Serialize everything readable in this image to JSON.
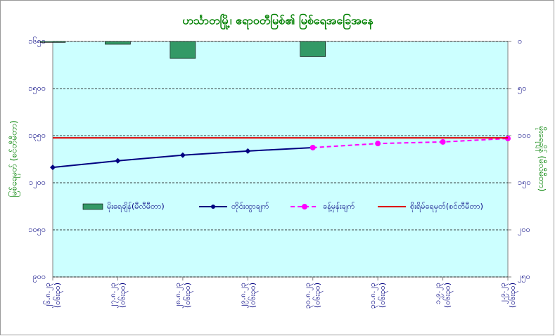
{
  "chart_data": {
    "type": "combo",
    "title": "ဟင်္သာတမြို့၊ ဧရာဝတီမြစ်၏ မြစ်ရေအခြေအနေ",
    "y_label": "မြစ်ရေမှတ် (စင်တီမီတာ)",
    "y2_label": "မိုးရေချိန် (မီလီမီတာ)",
    "categories": [
      [
        "၂၆.၈.၂၃",
        "(၀၆း၃၀)"
      ],
      [
        "၂၇.၈.၂၃",
        "(၀၆း၃၀)"
      ],
      [
        "၂၈.၈.၂၃",
        "(၀၆း၃၀)"
      ],
      [
        "၂၉.၈.၂၃",
        "(၀၆း၃၀)"
      ],
      [
        "၃၀.၈.၂၃",
        "(၀၆း၃၀)"
      ],
      [
        "၃၁.၈.၂၃",
        "(၀၆း၃၀)"
      ],
      [
        "၁.၉.၂၃",
        "(၀၆း၃၀)"
      ],
      [
        "၂.၉.၂၃",
        "(၀၆း၃၀)"
      ]
    ],
    "ylim": [
      900,
      1650
    ],
    "yticks": [
      {
        "value": 900,
        "label": "၉၀၀"
      },
      {
        "value": 1050,
        "label": "၁၀၅၀"
      },
      {
        "value": 1200,
        "label": "၁၂၀၀"
      },
      {
        "value": 1350,
        "label": "၁၃၅၀"
      },
      {
        "value": 1500,
        "label": "၁၅၀၀"
      },
      {
        "value": 1650,
        "label": "၁၆၅၀"
      }
    ],
    "y2lim": [
      0,
      250
    ],
    "y2_reversed": true,
    "y2ticks": [
      {
        "value": 0,
        "label": "၀"
      },
      {
        "value": 50,
        "label": "၅၀"
      },
      {
        "value": 100,
        "label": "၁၀၀"
      },
      {
        "value": 150,
        "label": "၁၅၀"
      },
      {
        "value": 200,
        "label": "၂၀၀"
      },
      {
        "value": 250,
        "label": "၂၅၀"
      }
    ],
    "grid": true,
    "background": "#ccffff",
    "series": [
      {
        "name": "မိုးရေချိန်(မီလီမီတာ)",
        "type": "bar",
        "axis": "y2",
        "color": "#339966",
        "values": [
          1,
          3,
          18,
          0,
          16,
          0,
          0,
          0
        ]
      },
      {
        "name": "တိုင်းထွာချက်",
        "type": "line",
        "color": "#000080",
        "dash": false,
        "values": [
          1249,
          1270,
          1288,
          1301,
          1312,
          null,
          null,
          null
        ]
      },
      {
        "name": "ခန့်မှန်းချက်",
        "type": "line",
        "color": "#ff00ff",
        "dash": true,
        "values": [
          null,
          null,
          null,
          null,
          1312,
          1325,
          1330,
          1341
        ]
      },
      {
        "name": "စိုးရိမ်ရေမှတ်(စင်တီမီတာ)",
        "type": "hline",
        "color": "#dd0000",
        "value": 1343
      }
    ]
  }
}
